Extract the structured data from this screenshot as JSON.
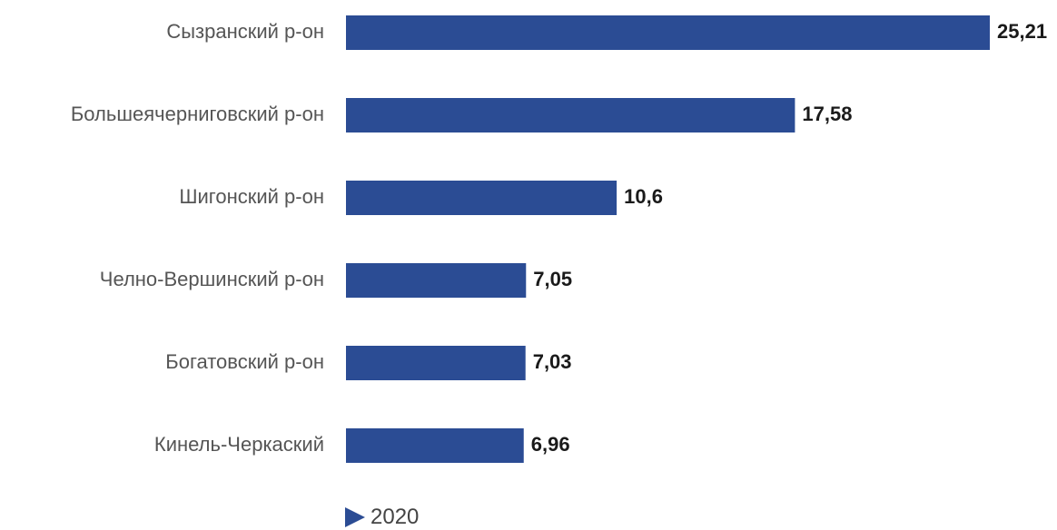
{
  "chart_data": {
    "type": "bar",
    "orientation": "horizontal",
    "categories": [
      "Сызранский р-он",
      "Большеячерниговский р-он",
      "Шигонский р-он",
      "Челно-Вершинский р-он",
      "Богатовский р-он",
      "Кинель-Черкаский"
    ],
    "series": [
      {
        "name": "2020",
        "values": [
          25.21,
          17.58,
          10.6,
          7.05,
          7.03,
          6.96
        ],
        "value_labels": [
          "25,21",
          "17,58",
          "10,6",
          "7,05",
          "7,03",
          "6,96"
        ]
      }
    ],
    "xlim": [
      0,
      25.21
    ],
    "grid": false,
    "legend": "bottom",
    "colors": {
      "bar": "#2b4c94",
      "category_text": "#555555",
      "value_text": "#1a1a1a"
    }
  }
}
